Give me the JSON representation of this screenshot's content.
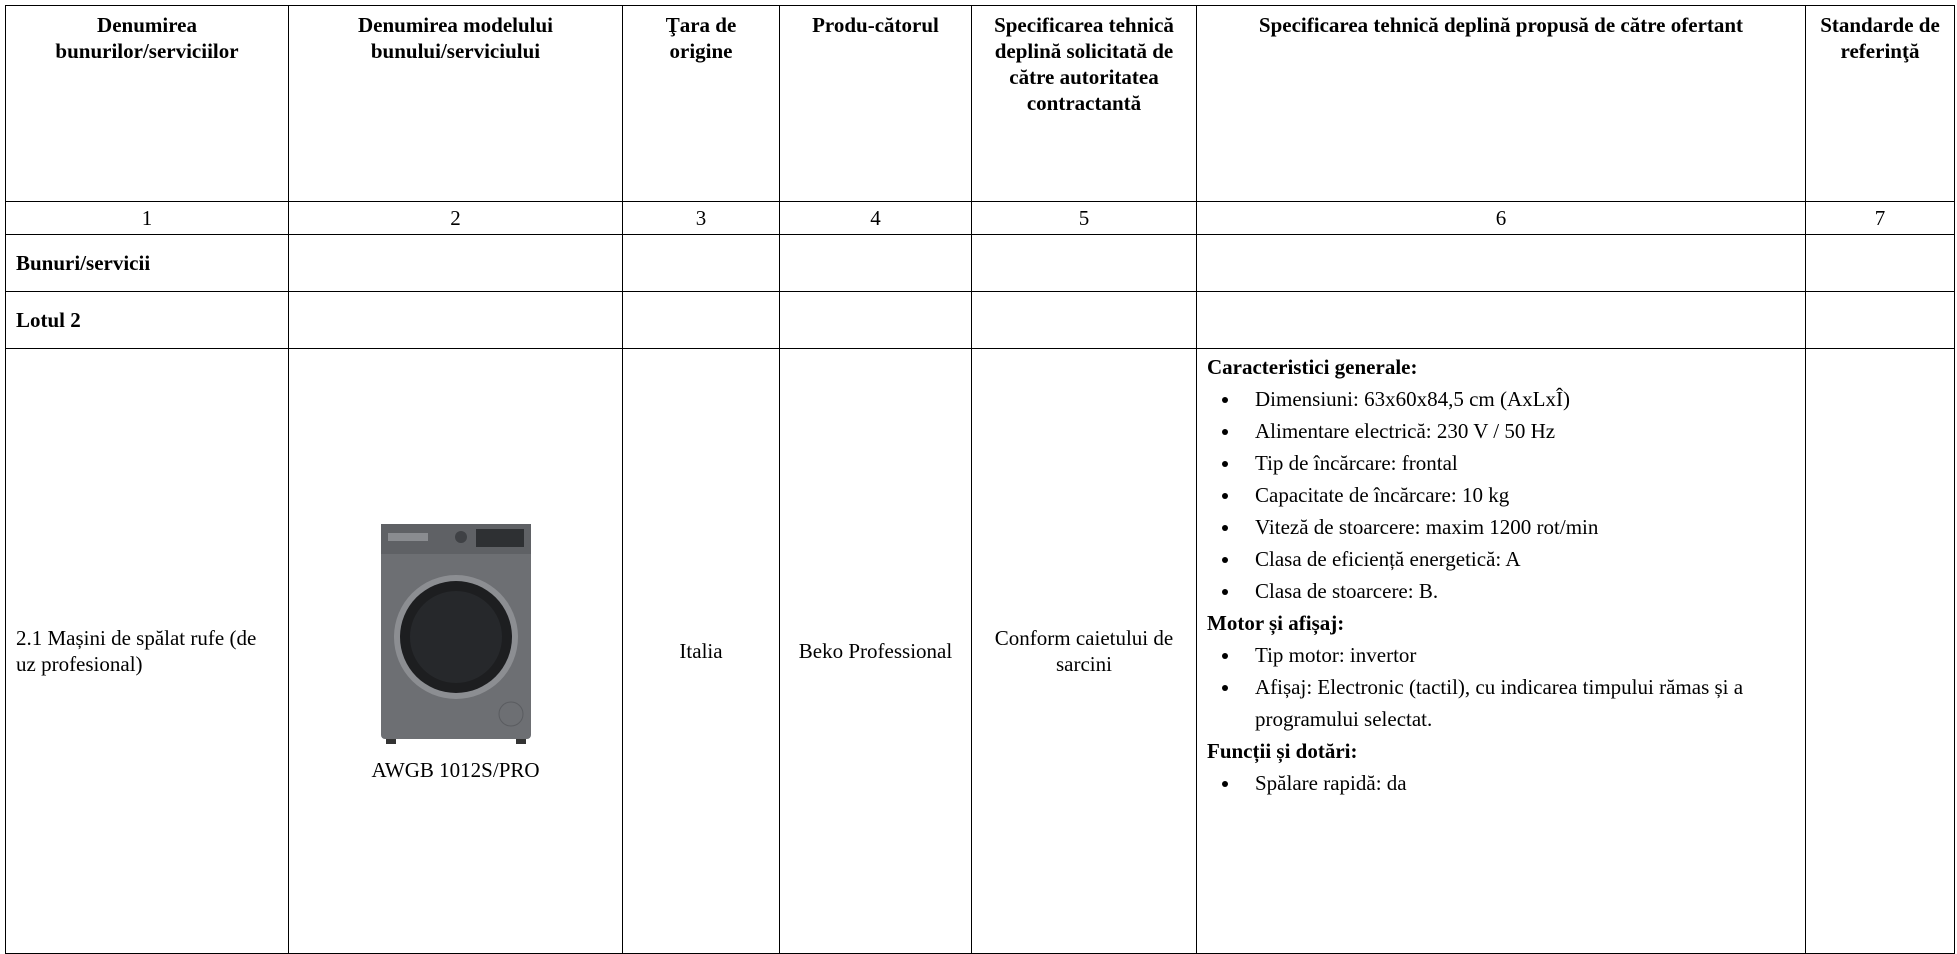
{
  "table": {
    "headers": [
      "Denumirea bunurilor/serviciilor",
      "Denumirea modelului bunului/serviciului",
      "Ţara de origine",
      "Produ-cătorul",
      "Specificarea tehnică deplină solicitată de către autoritatea contractantă",
      "Specificarea tehnică deplină propusă de către ofertant",
      "Standarde de referinţă"
    ],
    "column_numbers": [
      "1",
      "2",
      "3",
      "4",
      "5",
      "6",
      "7"
    ],
    "sections": [
      "Bunuri/servicii",
      "Lotul 2"
    ],
    "item": {
      "name": "2.1  Mașini de spălat rufe (de uz profesional)",
      "model": "AWGB 1012S/PRO",
      "country": "Italia",
      "producer": "Beko Professional",
      "requested_spec": "Conform caietului de sarcini",
      "offered_spec": [
        {
          "heading": "Caracteristici generale:",
          "items": [
            "Dimensiuni:  63x60x84,5 cm (AxLxÎ)",
            "Alimentare electrică: 230 V / 50 Hz",
            "Tip de încărcare: frontal",
            "Capacitate de încărcare: 10 kg",
            "Viteză de stoarcere: maxim 1200 rot/min",
            "Clasa de eficiență energetică: A",
            "Clasa de stoarcere: B."
          ]
        },
        {
          "heading": "Motor și afișaj:",
          "items": [
            "Tip motor: invertor",
            "Afișaj: Electronic (tactil), cu indicarea timpului rămas și a programului selectat."
          ]
        },
        {
          "heading": "Funcții și dotări:",
          "items": [
            "Spălare rapidă: da"
          ]
        }
      ]
    }
  }
}
